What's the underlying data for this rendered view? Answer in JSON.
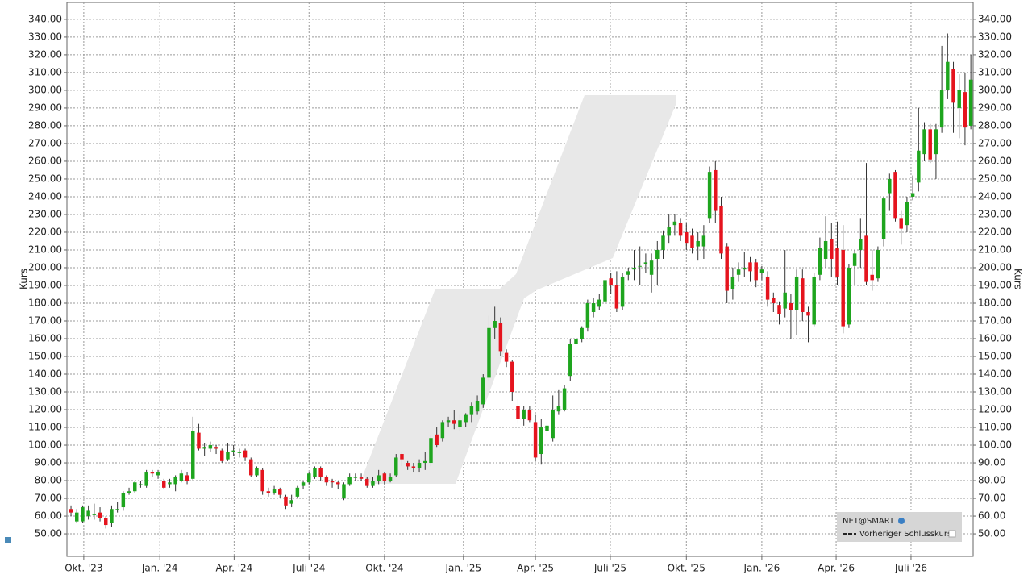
{
  "chart_data": {
    "type": "candlestick",
    "y_label": "Kurs",
    "legend": {
      "entries": [
        "NET@SMART",
        "Vorheriger Schlusskurs"
      ],
      "position": "lower right"
    },
    "grid": true,
    "up_color": "#1ea51e",
    "down_color": "#e5141e",
    "xlim": [
      -0.7,
      155.4
    ],
    "xticks": [
      {
        "value": 2.2,
        "label": "Okt. '23"
      },
      {
        "value": 15.3,
        "label": "Jan. '24"
      },
      {
        "value": 28.1,
        "label": "Apr. '24"
      },
      {
        "value": 41,
        "label": "Juli '24"
      },
      {
        "value": 54,
        "label": "Okt. '24"
      },
      {
        "value": 67.6,
        "label": "Jan. '25"
      },
      {
        "value": 80,
        "label": "Apr. '25"
      },
      {
        "value": 92.9,
        "label": "Juli '25"
      },
      {
        "value": 106,
        "label": "Okt. '25"
      },
      {
        "value": 119,
        "label": "Jan. '26"
      },
      {
        "value": 131.8,
        "label": "Apr. '26"
      },
      {
        "value": 144.7,
        "label": "Juli '26"
      }
    ],
    "ylim": [
      37.3,
      349.5
    ],
    "yticks": [
      {
        "value": 50,
        "label": "50.00"
      },
      {
        "value": 60,
        "label": "60.00"
      },
      {
        "value": 70,
        "label": "70.00"
      },
      {
        "value": 80,
        "label": "80.00"
      },
      {
        "value": 90,
        "label": "90.00"
      },
      {
        "value": 100,
        "label": "100.00"
      },
      {
        "value": 110,
        "label": "110.00"
      },
      {
        "value": 120,
        "label": "120.00"
      },
      {
        "value": 130,
        "label": "130.00"
      },
      {
        "value": 140,
        "label": "140.00"
      },
      {
        "value": 150,
        "label": "150.00"
      },
      {
        "value": 160,
        "label": "160.00"
      },
      {
        "value": 170,
        "label": "170.00"
      },
      {
        "value": 180,
        "label": "180.00"
      },
      {
        "value": 190,
        "label": "190.00"
      },
      {
        "value": 200,
        "label": "200.00"
      },
      {
        "value": 210,
        "label": "210.00"
      },
      {
        "value": 220,
        "label": "220.00"
      },
      {
        "value": 230,
        "label": "230.00"
      },
      {
        "value": 240,
        "label": "240.00"
      },
      {
        "value": 250,
        "label": "250.00"
      },
      {
        "value": 260,
        "label": "260.00"
      },
      {
        "value": 270,
        "label": "270.00"
      },
      {
        "value": 280,
        "label": "280.00"
      },
      {
        "value": 290,
        "label": "290.00"
      },
      {
        "value": 300,
        "label": "300.00"
      },
      {
        "value": 310,
        "label": "310.00"
      },
      {
        "value": 320,
        "label": "320.00"
      },
      {
        "value": 330,
        "label": "330.00"
      },
      {
        "value": 340,
        "label": "340.00"
      }
    ],
    "open": [
      64,
      57,
      57,
      60,
      61,
      62,
      59,
      56,
      64,
      65,
      73,
      74,
      78,
      77,
      85,
      83,
      80,
      78,
      78,
      80,
      83,
      81,
      107,
      98,
      98,
      99,
      97,
      92,
      96,
      96,
      97,
      92,
      83,
      86,
      74,
      73,
      75,
      71,
      67,
      71,
      77,
      79,
      82,
      87,
      82,
      80,
      79,
      70,
      78,
      82,
      82,
      81,
      77,
      80,
      84,
      80,
      83,
      95,
      90,
      88,
      87,
      90,
      90,
      106,
      104,
      113,
      114,
      110,
      113,
      117,
      119,
      123,
      138,
      166,
      169,
      152,
      147,
      122,
      115,
      120,
      113,
      95,
      108,
      104,
      119,
      120,
      139,
      157,
      160,
      166,
      175,
      178,
      181,
      194,
      190,
      178,
      196,
      199,
      201,
      202,
      196,
      205,
      210,
      218,
      224,
      225,
      220,
      218,
      212,
      212,
      228,
      255,
      235,
      212,
      188,
      196,
      199,
      203,
      203,
      197,
      195,
      183,
      179,
      177,
      180,
      176,
      194,
      175,
      168,
      196,
      205,
      216,
      211,
      210,
      168,
      201,
      210,
      218,
      196,
      194,
      216,
      242,
      254,
      228,
      224,
      240,
      248,
      264,
      278,
      264,
      279,
      300,
      312,
      290,
      299,
      280
    ],
    "high": [
      66,
      64,
      66,
      66,
      67,
      65,
      60,
      66,
      68,
      74,
      76,
      80,
      80,
      86,
      86,
      86,
      81,
      81,
      83,
      86,
      85,
      116,
      112,
      101,
      102,
      100,
      98,
      101,
      100,
      98,
      98,
      93,
      88,
      87,
      76,
      77,
      76,
      72,
      72,
      77,
      80,
      85,
      88,
      88,
      83,
      81,
      80,
      79,
      84,
      84,
      84,
      82,
      82,
      86,
      85,
      84,
      95,
      96,
      91,
      90,
      92,
      96,
      106,
      110,
      114,
      116,
      120,
      117,
      118,
      124,
      128,
      140,
      173,
      178,
      172,
      154,
      148,
      126,
      122,
      122,
      117,
      115,
      113,
      128,
      131,
      134,
      160,
      162,
      167,
      182,
      183,
      185,
      195,
      197,
      198,
      197,
      200,
      210,
      212,
      208,
      208,
      215,
      221,
      230,
      230,
      228,
      225,
      222,
      220,
      224,
      257,
      260,
      240,
      214,
      200,
      203,
      209,
      206,
      205,
      201,
      198,
      186,
      181,
      210,
      185,
      199,
      199,
      178,
      197,
      217,
      229,
      225,
      226,
      224,
      202,
      210,
      228,
      259,
      210,
      212,
      240,
      253,
      255,
      232,
      240,
      252,
      290,
      282,
      281,
      281,
      325,
      332,
      316,
      309,
      310,
      320
    ],
    "low": [
      60,
      56,
      56,
      58,
      58,
      57,
      53,
      54,
      62,
      63,
      72,
      73,
      76,
      76,
      82,
      81,
      75,
      76,
      74,
      79,
      78,
      80,
      97,
      94,
      96,
      95,
      90,
      91,
      94,
      93,
      91,
      82,
      82,
      72,
      71,
      72,
      70,
      64,
      65,
      70,
      75,
      78,
      81,
      80,
      77,
      76,
      75,
      69,
      77,
      80,
      80,
      76,
      76,
      78,
      78,
      79,
      82,
      88,
      86,
      85,
      85,
      86,
      88,
      99,
      102,
      110,
      109,
      108,
      110,
      113,
      117,
      121,
      136,
      160,
      150,
      144,
      125,
      112,
      111,
      113,
      91,
      89,
      105,
      102,
      117,
      119,
      136,
      153,
      158,
      164,
      172,
      176,
      178,
      185,
      175,
      176,
      193,
      193,
      190,
      197,
      186,
      190,
      205,
      214,
      218,
      215,
      210,
      208,
      204,
      205,
      225,
      225,
      205,
      180,
      182,
      192,
      195,
      192,
      189,
      193,
      178,
      175,
      168,
      172,
      160,
      162,
      170,
      158,
      167,
      193,
      200,
      195,
      190,
      163,
      166,
      190,
      200,
      190,
      187,
      192,
      212,
      232,
      226,
      213,
      220,
      238,
      243,
      260,
      259,
      250,
      276,
      295,
      276,
      273,
      269,
      278
    ],
    "close": [
      62,
      62,
      65,
      63,
      61,
      59,
      55,
      64,
      64,
      73,
      74,
      79,
      78,
      85,
      84,
      85,
      76,
      79,
      82,
      84,
      80,
      108,
      98,
      99,
      100,
      98,
      91,
      96,
      97,
      96,
      93,
      83,
      87,
      74,
      73,
      75,
      72,
      66,
      69,
      76,
      79,
      84,
      87,
      82,
      79,
      79,
      78,
      78,
      82,
      82,
      81,
      77,
      80,
      83,
      80,
      82,
      93,
      92,
      88,
      87,
      90,
      91,
      104,
      100,
      113,
      114,
      112,
      114,
      117,
      122,
      125,
      138,
      166,
      170,
      153,
      147,
      130,
      115,
      120,
      114,
      93,
      110,
      111,
      120,
      122,
      132,
      157,
      160,
      166,
      180,
      180,
      182,
      193,
      190,
      177,
      195,
      198,
      200,
      201,
      203,
      204,
      210,
      218,
      223,
      226,
      218,
      214,
      211,
      215,
      218,
      254,
      232,
      208,
      187,
      195,
      199,
      200,
      198,
      193,
      199,
      182,
      180,
      174,
      186,
      176,
      195,
      175,
      173,
      195,
      211,
      215,
      205,
      195,
      167,
      200,
      208,
      216,
      192,
      193,
      210,
      239,
      250,
      228,
      222,
      237,
      242,
      266,
      278,
      261,
      278,
      300,
      316,
      293,
      300,
      279,
      306
    ]
  }
}
